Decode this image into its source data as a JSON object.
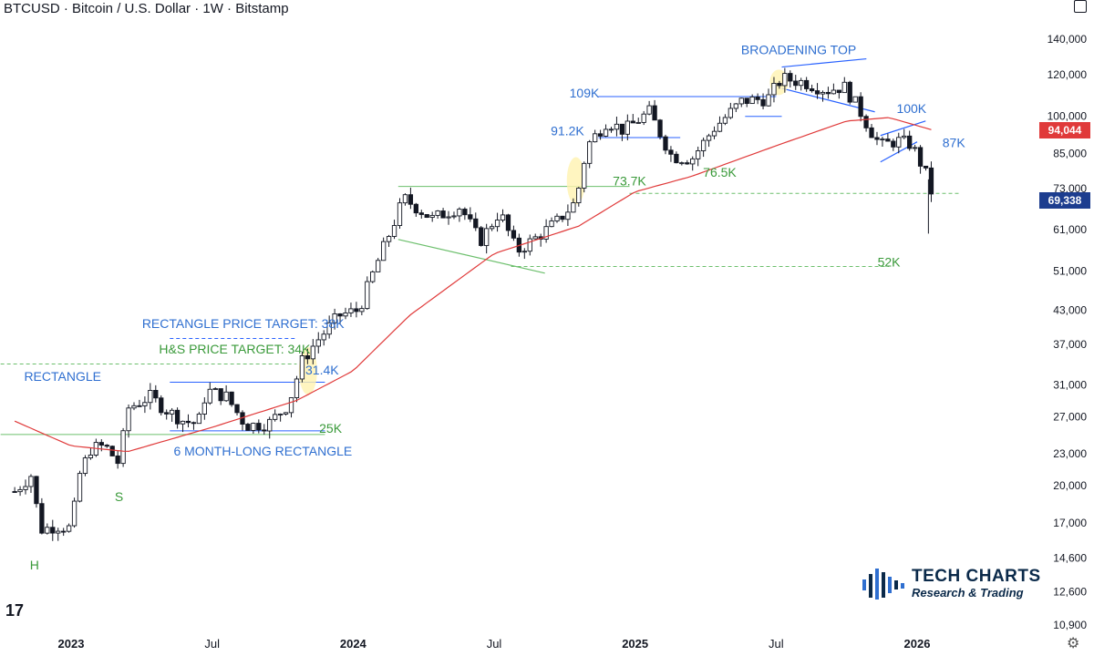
{
  "header": {
    "title": "BTCUSD · Bitcoin / U.S. Dollar · 1W · Bitstamp"
  },
  "logo": {
    "main": "TECH CHARTS",
    "sub": "Research & Trading",
    "mark": "bars-logo-icon"
  },
  "platform_logo": "17",
  "colors": {
    "up": "#ffffff",
    "down": "#131722",
    "ma": "#e03a3a",
    "blue": "#2962ff",
    "label_blue": "#2f6fd0",
    "label_green": "#3a9a3a",
    "green_line": "#6cbf6c",
    "current_price_bg": "#1c3d8f",
    "ma_price_bg": "#e03a3a"
  },
  "chart_data": {
    "type": "candlestick",
    "title": "BTCUSD · Bitcoin / U.S. Dollar · 1W · Bitstamp",
    "scale": "log",
    "y_ticks": [
      140000,
      120000,
      100000,
      85000,
      73000,
      61000,
      51000,
      43000,
      37000,
      31000,
      27000,
      23000,
      20000,
      17000,
      14600,
      12600,
      10900
    ],
    "y_tick_labels": [
      "140,000",
      "120,000",
      "100,000",
      "85,000",
      "73,000",
      "61,000",
      "51,000",
      "43,000",
      "37,000",
      "31,000",
      "27,000",
      "23,000",
      "20,000",
      "17,000",
      "14,600",
      "12,600",
      "10,900"
    ],
    "x_ticks": [
      {
        "label": "2023",
        "date": 2023.0
      },
      {
        "label": "Jul",
        "date": 2023.5
      },
      {
        "label": "2024",
        "date": 2024.0
      },
      {
        "label": "Jul",
        "date": 2024.5
      },
      {
        "label": "2025",
        "date": 2025.0
      },
      {
        "label": "Jul",
        "date": 2025.5
      },
      {
        "label": "2026",
        "date": 2026.0
      }
    ],
    "price_labels": {
      "current": "69,338",
      "current_value": 69338,
      "ma": "94,044",
      "ma_value": 94044
    },
    "price_anchors": [
      [
        2022.8,
        19500
      ],
      [
        2022.86,
        21000
      ],
      [
        2022.89,
        16500
      ],
      [
        2022.95,
        16800
      ],
      [
        2023.0,
        16600
      ],
      [
        2023.03,
        21000
      ],
      [
        2023.07,
        23500
      ],
      [
        2023.12,
        23800
      ],
      [
        2023.17,
        22000
      ],
      [
        2023.2,
        28000
      ],
      [
        2023.28,
        29500
      ],
      [
        2023.33,
        28000
      ],
      [
        2023.4,
        26500
      ],
      [
        2023.45,
        26200
      ],
      [
        2023.48,
        30300
      ],
      [
        2023.55,
        29500
      ],
      [
        2023.62,
        26000
      ],
      [
        2023.7,
        26200
      ],
      [
        2023.77,
        28500
      ],
      [
        2023.82,
        34500
      ],
      [
        2023.87,
        37500
      ],
      [
        2023.95,
        42000
      ],
      [
        2024.02,
        43000
      ],
      [
        2024.08,
        52000
      ],
      [
        2024.14,
        62000
      ],
      [
        2024.18,
        70000
      ],
      [
        2024.28,
        64000
      ],
      [
        2024.38,
        67500
      ],
      [
        2024.45,
        58000
      ],
      [
        2024.52,
        66000
      ],
      [
        2024.58,
        55500
      ],
      [
        2024.65,
        59000
      ],
      [
        2024.72,
        63000
      ],
      [
        2024.79,
        69000
      ],
      [
        2024.83,
        88000
      ],
      [
        2024.9,
        98000
      ],
      [
        2024.96,
        94000
      ],
      [
        2025.05,
        102000
      ],
      [
        2025.13,
        84000
      ],
      [
        2025.2,
        83000
      ],
      [
        2025.28,
        95000
      ],
      [
        2025.38,
        107000
      ],
      [
        2025.47,
        108000
      ],
      [
        2025.52,
        118000
      ],
      [
        2025.6,
        116000
      ],
      [
        2025.68,
        112000
      ],
      [
        2025.74,
        114000
      ],
      [
        2025.79,
        104000
      ],
      [
        2025.83,
        95000
      ],
      [
        2025.87,
        88000
      ],
      [
        2025.93,
        90000
      ],
      [
        2025.98,
        88500
      ],
      [
        2026.03,
        78000
      ],
      [
        2026.06,
        69338
      ]
    ],
    "moving_average": [
      [
        2022.8,
        26500
      ],
      [
        2023.0,
        23800
      ],
      [
        2023.2,
        23200
      ],
      [
        2023.5,
        25800
      ],
      [
        2023.8,
        29000
      ],
      [
        2024.0,
        33000
      ],
      [
        2024.2,
        42000
      ],
      [
        2024.5,
        55000
      ],
      [
        2024.8,
        62000
      ],
      [
        2025.0,
        72000
      ],
      [
        2025.2,
        77000
      ],
      [
        2025.5,
        88000
      ],
      [
        2025.75,
        98000
      ],
      [
        2025.9,
        99500
      ],
      [
        2026.06,
        94044
      ]
    ],
    "annotations": [
      {
        "text": "BROADENING TOP",
        "date": 2025.58,
        "price": 131000,
        "color": "blue"
      },
      {
        "text": "109K",
        "date": 2024.82,
        "price": 108500,
        "color": "blue"
      },
      {
        "text": "100K",
        "date": 2025.98,
        "price": 101500,
        "color": "blue"
      },
      {
        "text": "91.2K",
        "date": 2024.76,
        "price": 92000,
        "color": "blue"
      },
      {
        "text": "87K",
        "date": 2026.13,
        "price": 87500,
        "color": "blue"
      },
      {
        "text": "73.7K",
        "date": 2024.98,
        "price": 74000,
        "color": "green"
      },
      {
        "text": "76.5K",
        "date": 2025.3,
        "price": 76800,
        "color": "green"
      },
      {
        "text": "52K",
        "date": 2025.9,
        "price": 52000,
        "color": "green"
      },
      {
        "text": "RECTANGLE PRICE TARGET: 38K",
        "date": 2023.61,
        "price": 39800,
        "color": "blue"
      },
      {
        "text": "H&S PRICE TARGET: 34K",
        "date": 2023.58,
        "price": 35600,
        "color": "green"
      },
      {
        "text": "RECTANGLE",
        "date": 2022.97,
        "price": 31600,
        "color": "blue"
      },
      {
        "text": "31.4K",
        "date": 2023.89,
        "price": 32500,
        "color": "blue"
      },
      {
        "text": "25K",
        "date": 2023.92,
        "price": 25200,
        "color": "green"
      },
      {
        "text": "6 MONTH-LONG RECTANGLE",
        "date": 2023.68,
        "price": 22800,
        "color": "blue"
      },
      {
        "text": "S",
        "date": 2023.17,
        "price": 18700,
        "color": "green"
      },
      {
        "text": "H",
        "date": 2022.87,
        "price": 13900,
        "color": "green"
      }
    ]
  }
}
